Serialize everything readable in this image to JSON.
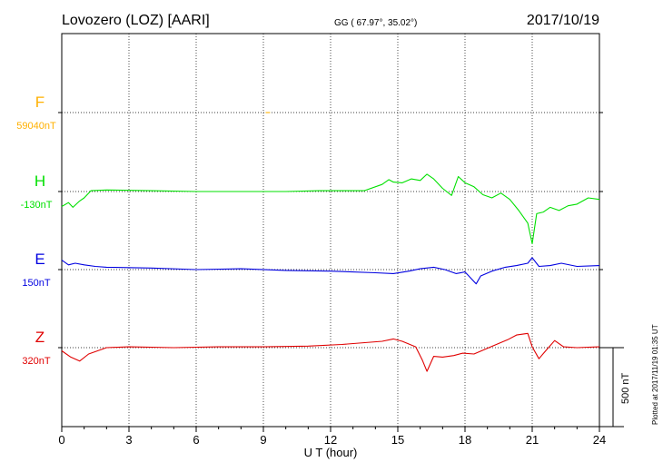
{
  "header": {
    "station": "Lovozero (LOZ)  [AARI]",
    "coords": "GG ( 67.97°,  35.02°)",
    "date": "2017/10/19"
  },
  "side_note": "Plotted at 2017/11/19 01:35 UT",
  "scale_label": "500 nT",
  "chart_data": {
    "type": "line",
    "xlabel": "U T (hour)",
    "xlim": [
      0,
      24
    ],
    "x_ticks": [
      "0",
      "3",
      "6",
      "9",
      "12",
      "15",
      "18",
      "21",
      "24"
    ],
    "grid": true,
    "series": [
      {
        "name": "F",
        "baseline_label": "59040nT",
        "color": "#ffb000",
        "points": [
          [
            9.1,
            0
          ],
          [
            9.3,
            0
          ]
        ]
      },
      {
        "name": "H",
        "baseline_label": "-130nT",
        "color": "#00e000",
        "points": [
          [
            0,
            -95
          ],
          [
            0.3,
            -70
          ],
          [
            0.5,
            -100
          ],
          [
            0.8,
            -60
          ],
          [
            1.0,
            -40
          ],
          [
            1.3,
            5
          ],
          [
            2,
            10
          ],
          [
            4,
            5
          ],
          [
            6,
            0
          ],
          [
            8,
            0
          ],
          [
            10,
            0
          ],
          [
            11.5,
            5
          ],
          [
            13.5,
            5
          ],
          [
            14.3,
            45
          ],
          [
            14.6,
            75
          ],
          [
            14.8,
            60
          ],
          [
            15.2,
            55
          ],
          [
            15.6,
            80
          ],
          [
            16.0,
            70
          ],
          [
            16.3,
            110
          ],
          [
            16.6,
            80
          ],
          [
            17.0,
            20
          ],
          [
            17.4,
            -25
          ],
          [
            17.7,
            95
          ],
          [
            18.0,
            55
          ],
          [
            18.4,
            30
          ],
          [
            18.8,
            -20
          ],
          [
            19.2,
            -40
          ],
          [
            19.6,
            -10
          ],
          [
            20.0,
            -50
          ],
          [
            20.4,
            -120
          ],
          [
            20.8,
            -200
          ],
          [
            21.0,
            -330
          ],
          [
            21.2,
            -140
          ],
          [
            21.5,
            -130
          ],
          [
            21.8,
            -100
          ],
          [
            22.2,
            -120
          ],
          [
            22.6,
            -90
          ],
          [
            23.0,
            -80
          ],
          [
            23.5,
            -40
          ],
          [
            24.0,
            -50
          ]
        ]
      },
      {
        "name": "E",
        "baseline_label": "150nT",
        "color": "#0000e0",
        "points": [
          [
            0,
            60
          ],
          [
            0.3,
            30
          ],
          [
            0.6,
            40
          ],
          [
            1.0,
            30
          ],
          [
            1.5,
            20
          ],
          [
            2,
            15
          ],
          [
            4,
            10
          ],
          [
            6,
            0
          ],
          [
            8,
            5
          ],
          [
            10,
            -5
          ],
          [
            12,
            -10
          ],
          [
            14,
            -20
          ],
          [
            14.8,
            -25
          ],
          [
            15.5,
            -10
          ],
          [
            16.0,
            5
          ],
          [
            16.6,
            15
          ],
          [
            17.1,
            0
          ],
          [
            17.6,
            -25
          ],
          [
            18.0,
            -15
          ],
          [
            18.5,
            -90
          ],
          [
            18.7,
            -40
          ],
          [
            19.2,
            -10
          ],
          [
            19.8,
            15
          ],
          [
            20.3,
            25
          ],
          [
            20.8,
            40
          ],
          [
            21.0,
            75
          ],
          [
            21.3,
            20
          ],
          [
            21.8,
            25
          ],
          [
            22.3,
            40
          ],
          [
            23.0,
            20
          ],
          [
            24.0,
            25
          ]
        ]
      },
      {
        "name": "Z",
        "baseline_label": "320nT",
        "color": "#e00000",
        "points": [
          [
            0,
            -20
          ],
          [
            0.4,
            -60
          ],
          [
            0.8,
            -85
          ],
          [
            1.2,
            -40
          ],
          [
            2,
            0
          ],
          [
            3,
            5
          ],
          [
            5,
            0
          ],
          [
            7,
            5
          ],
          [
            9,
            5
          ],
          [
            11,
            10
          ],
          [
            12.5,
            20
          ],
          [
            14.3,
            40
          ],
          [
            14.8,
            55
          ],
          [
            15.2,
            40
          ],
          [
            15.8,
            5
          ],
          [
            16.1,
            -80
          ],
          [
            16.3,
            -150
          ],
          [
            16.6,
            -55
          ],
          [
            17.0,
            -60
          ],
          [
            17.5,
            -50
          ],
          [
            17.9,
            -35
          ],
          [
            18.4,
            -40
          ],
          [
            18.9,
            -10
          ],
          [
            19.4,
            20
          ],
          [
            19.9,
            50
          ],
          [
            20.3,
            80
          ],
          [
            20.8,
            90
          ],
          [
            21.0,
            5
          ],
          [
            21.3,
            -70
          ],
          [
            21.6,
            -20
          ],
          [
            22.0,
            45
          ],
          [
            22.4,
            5
          ],
          [
            23.0,
            0
          ],
          [
            24.0,
            5
          ]
        ]
      }
    ]
  }
}
